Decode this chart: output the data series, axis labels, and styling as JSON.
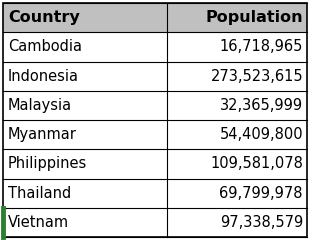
{
  "columns": [
    "Country",
    "Population"
  ],
  "rows": [
    [
      "Cambodia",
      "16,718,965"
    ],
    [
      "Indonesia",
      "273,523,615"
    ],
    [
      "Malaysia",
      "32,365,999"
    ],
    [
      "Myanmar",
      "54,409,800"
    ],
    [
      "Philippines",
      "109,581,078"
    ],
    [
      "Thailand",
      "69,799,978"
    ],
    [
      "Vietnam",
      "97,338,579"
    ]
  ],
  "header_bg": "#c0c0c0",
  "header_text_color": "#000000",
  "row_bg": "#ffffff",
  "last_row_left_border_color": "#2e7d32",
  "border_color": "#000000",
  "font_size": 10.5,
  "header_font_size": 11.5,
  "col_split": 0.54,
  "fig_width": 3.1,
  "fig_height": 2.4
}
